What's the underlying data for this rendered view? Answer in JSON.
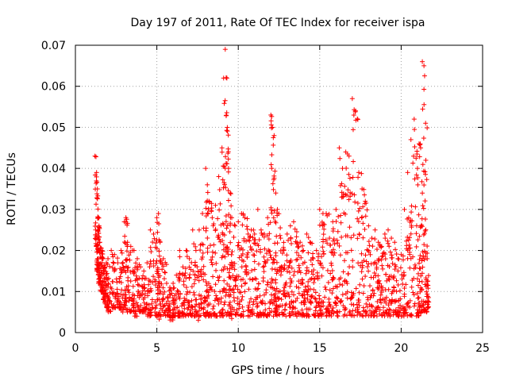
{
  "chart_data": {
    "type": "scatter",
    "title": "Day 197 of 2011, Rate Of TEC Index for receiver ispa",
    "xlabel": "GPS time / hours",
    "ylabel": "ROTI / TECUs",
    "xlim": [
      0,
      25
    ],
    "ylim": [
      0,
      0.07
    ],
    "xticks": [
      "0",
      "5",
      "10",
      "15",
      "20",
      "25"
    ],
    "yticks": [
      "0",
      "0.01",
      "0.02",
      "0.03",
      "0.04",
      "0.05",
      "0.06",
      "0.07"
    ],
    "grid": true,
    "marker": "+",
    "color": "#ff0000",
    "series": [
      {
        "x": [
          1.2,
          1.3,
          1.35,
          1.4,
          1.45,
          1.5,
          1.6,
          1.7,
          1.8,
          1.9,
          2.0,
          2.2,
          2.4,
          2.6,
          2.8,
          3.0,
          3.1,
          3.2,
          3.4,
          3.6,
          3.8,
          4.0,
          4.2,
          4.4,
          4.6,
          4.8,
          5.0,
          5.1,
          5.2,
          5.4,
          5.6,
          5.8,
          6.0,
          6.2,
          6.4,
          6.6,
          6.8,
          7.0,
          7.2,
          7.4,
          7.6,
          7.8,
          8.0,
          8.1,
          8.2,
          8.4,
          8.6,
          8.8,
          9.0,
          9.1,
          9.2,
          9.3,
          9.4,
          9.5,
          9.6,
          9.8,
          10.0,
          10.2,
          10.4,
          10.6,
          10.8,
          11.0,
          11.2,
          11.4,
          11.6,
          11.8,
          12.0,
          12.1,
          12.2,
          12.3,
          12.4,
          12.6,
          12.8,
          13.0,
          13.2,
          13.4,
          13.6,
          13.8,
          14.0,
          14.2,
          14.4,
          14.6,
          14.8,
          15.0,
          15.2,
          15.4,
          15.6,
          15.8,
          16.0,
          16.2,
          16.4,
          16.6,
          16.8,
          17.0,
          17.2,
          17.4,
          17.6,
          17.8,
          18.0,
          18.2,
          18.4,
          18.6,
          18.8,
          19.0,
          19.2,
          19.4,
          19.6,
          19.8,
          20.0,
          20.2,
          20.4,
          20.6,
          20.8,
          21.0,
          21.1,
          21.2,
          21.3,
          21.4,
          21.5,
          21.6
        ],
        "y_upper": [
          0.043,
          0.039,
          0.035,
          0.028,
          0.026,
          0.022,
          0.02,
          0.018,
          0.016,
          0.017,
          0.018,
          0.02,
          0.019,
          0.017,
          0.02,
          0.027,
          0.028,
          0.022,
          0.021,
          0.02,
          0.018,
          0.016,
          0.015,
          0.017,
          0.025,
          0.024,
          0.028,
          0.029,
          0.022,
          0.018,
          0.012,
          0.011,
          0.012,
          0.014,
          0.02,
          0.016,
          0.02,
          0.018,
          0.025,
          0.02,
          0.025,
          0.029,
          0.04,
          0.036,
          0.032,
          0.028,
          0.031,
          0.038,
          0.045,
          0.062,
          0.069,
          0.062,
          0.04,
          0.034,
          0.028,
          0.026,
          0.027,
          0.029,
          0.028,
          0.024,
          0.025,
          0.024,
          0.03,
          0.025,
          0.024,
          0.028,
          0.053,
          0.05,
          0.048,
          0.034,
          0.03,
          0.023,
          0.02,
          0.024,
          0.026,
          0.027,
          0.022,
          0.022,
          0.02,
          0.024,
          0.022,
          0.018,
          0.02,
          0.03,
          0.029,
          0.029,
          0.023,
          0.027,
          0.03,
          0.045,
          0.04,
          0.044,
          0.043,
          0.057,
          0.054,
          0.039,
          0.035,
          0.032,
          0.026,
          0.023,
          0.025,
          0.022,
          0.021,
          0.024,
          0.025,
          0.023,
          0.022,
          0.018,
          0.019,
          0.03,
          0.039,
          0.047,
          0.052,
          0.04,
          0.046,
          0.045,
          0.066,
          0.065,
          0.051,
          0.018
        ],
        "y_lower": [
          0.02,
          0.015,
          0.014,
          0.012,
          0.012,
          0.01,
          0.01,
          0.008,
          0.007,
          0.006,
          0.005,
          0.006,
          0.006,
          0.006,
          0.005,
          0.006,
          0.005,
          0.005,
          0.005,
          0.004,
          0.005,
          0.005,
          0.005,
          0.004,
          0.004,
          0.004,
          0.004,
          0.003,
          0.004,
          0.004,
          0.004,
          0.003,
          0.004,
          0.004,
          0.004,
          0.004,
          0.004,
          0.004,
          0.004,
          0.003,
          0.004,
          0.004,
          0.004,
          0.004,
          0.004,
          0.004,
          0.004,
          0.004,
          0.004,
          0.004,
          0.004,
          0.004,
          0.004,
          0.003,
          0.004,
          0.004,
          0.004,
          0.004,
          0.004,
          0.004,
          0.004,
          0.004,
          0.004,
          0.004,
          0.004,
          0.004,
          0.004,
          0.004,
          0.004,
          0.004,
          0.004,
          0.004,
          0.004,
          0.004,
          0.004,
          0.004,
          0.004,
          0.004,
          0.004,
          0.004,
          0.004,
          0.004,
          0.004,
          0.004,
          0.004,
          0.004,
          0.004,
          0.004,
          0.004,
          0.004,
          0.004,
          0.004,
          0.004,
          0.004,
          0.004,
          0.004,
          0.004,
          0.004,
          0.004,
          0.004,
          0.004,
          0.004,
          0.004,
          0.004,
          0.004,
          0.004,
          0.004,
          0.004,
          0.004,
          0.004,
          0.004,
          0.004,
          0.004,
          0.004,
          0.004,
          0.004,
          0.005,
          0.005,
          0.005,
          0.006
        ]
      }
    ]
  }
}
